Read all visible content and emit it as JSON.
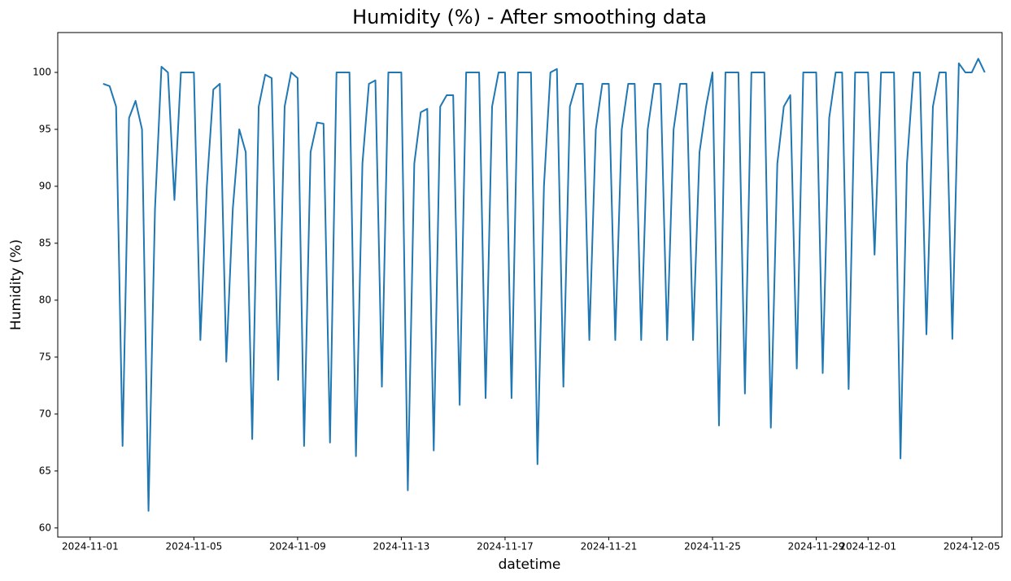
{
  "chart_data": {
    "type": "line",
    "title": "Humidity (%) - After smoothing data",
    "x_label": "datetime",
    "y_label": "Humidity (%)",
    "color": "#1f77b4",
    "x": [
      "2024-11-01 12:00",
      "2024-11-01 18:00",
      "2024-11-02 00:00",
      "2024-11-02 06:00",
      "2024-11-02 12:00",
      "2024-11-02 18:00",
      "2024-11-03 00:00",
      "2024-11-03 06:00",
      "2024-11-03 12:00",
      "2024-11-03 18:00",
      "2024-11-04 00:00",
      "2024-11-04 06:00",
      "2024-11-04 12:00",
      "2024-11-04 18:00",
      "2024-11-05 00:00",
      "2024-11-05 06:00",
      "2024-11-05 12:00",
      "2024-11-05 18:00",
      "2024-11-06 00:00",
      "2024-11-06 06:00",
      "2024-11-06 12:00",
      "2024-11-06 18:00",
      "2024-11-07 00:00",
      "2024-11-07 06:00",
      "2024-11-07 12:00",
      "2024-11-07 18:00",
      "2024-11-08 00:00",
      "2024-11-08 06:00",
      "2024-11-08 12:00",
      "2024-11-08 18:00",
      "2024-11-09 00:00",
      "2024-11-09 06:00",
      "2024-11-09 12:00",
      "2024-11-09 18:00",
      "2024-11-10 00:00",
      "2024-11-10 06:00",
      "2024-11-10 12:00",
      "2024-11-10 18:00",
      "2024-11-11 00:00",
      "2024-11-11 06:00",
      "2024-11-11 12:00",
      "2024-11-11 18:00",
      "2024-11-12 00:00",
      "2024-11-12 06:00",
      "2024-11-12 12:00",
      "2024-11-12 18:00",
      "2024-11-13 00:00",
      "2024-11-13 06:00",
      "2024-11-13 12:00",
      "2024-11-13 18:00",
      "2024-11-14 00:00",
      "2024-11-14 06:00",
      "2024-11-14 12:00",
      "2024-11-14 18:00",
      "2024-11-15 00:00",
      "2024-11-15 06:00",
      "2024-11-15 12:00",
      "2024-11-15 18:00",
      "2024-11-16 00:00",
      "2024-11-16 06:00",
      "2024-11-16 12:00",
      "2024-11-16 18:00",
      "2024-11-17 00:00",
      "2024-11-17 06:00",
      "2024-11-17 12:00",
      "2024-11-17 18:00",
      "2024-11-18 00:00",
      "2024-11-18 06:00",
      "2024-11-18 12:00",
      "2024-11-18 18:00",
      "2024-11-19 00:00",
      "2024-11-19 06:00",
      "2024-11-19 12:00",
      "2024-11-19 18:00",
      "2024-11-20 00:00",
      "2024-11-20 06:00",
      "2024-11-20 12:00",
      "2024-11-20 18:00",
      "2024-11-21 00:00",
      "2024-11-21 06:00",
      "2024-11-21 12:00",
      "2024-11-21 18:00",
      "2024-11-22 00:00",
      "2024-11-22 06:00",
      "2024-11-22 12:00",
      "2024-11-22 18:00",
      "2024-11-23 00:00",
      "2024-11-23 06:00",
      "2024-11-23 12:00",
      "2024-11-23 18:00",
      "2024-11-24 00:00",
      "2024-11-24 06:00",
      "2024-11-24 12:00",
      "2024-11-24 18:00",
      "2024-11-25 00:00",
      "2024-11-25 06:00",
      "2024-11-25 12:00",
      "2024-11-25 18:00",
      "2024-11-26 00:00",
      "2024-11-26 06:00",
      "2024-11-26 12:00",
      "2024-11-26 18:00",
      "2024-11-27 00:00",
      "2024-11-27 06:00",
      "2024-11-27 12:00",
      "2024-11-27 18:00",
      "2024-11-28 00:00",
      "2024-11-28 06:00",
      "2024-11-28 12:00",
      "2024-11-28 18:00",
      "2024-11-29 00:00",
      "2024-11-29 06:00",
      "2024-11-29 12:00",
      "2024-11-29 18:00",
      "2024-11-30 00:00",
      "2024-11-30 06:00",
      "2024-11-30 12:00",
      "2024-11-30 18:00",
      "2024-12-01 00:00",
      "2024-12-01 06:00",
      "2024-12-01 12:00",
      "2024-12-01 18:00",
      "2024-12-02 00:00",
      "2024-12-02 06:00",
      "2024-12-02 12:00",
      "2024-12-02 18:00",
      "2024-12-03 00:00",
      "2024-12-03 06:00",
      "2024-12-03 12:00",
      "2024-12-03 18:00",
      "2024-12-04 00:00",
      "2024-12-04 06:00",
      "2024-12-04 12:00",
      "2024-12-04 18:00",
      "2024-12-05 00:00",
      "2024-12-05 06:00",
      "2024-12-05 12:00"
    ],
    "values": [
      99,
      98.8,
      97,
      67.2,
      96,
      97.5,
      95,
      61.5,
      88,
      100.5,
      100,
      88.8,
      100,
      100,
      100,
      76.5,
      90,
      98.5,
      99,
      74.6,
      88,
      95,
      93,
      67.8,
      97,
      99.8,
      99.5,
      73,
      97,
      100,
      99.5,
      67.2,
      93,
      95.6,
      95.5,
      67.5,
      100,
      100,
      100,
      66.3,
      92,
      99,
      99.3,
      72.4,
      100,
      100,
      100,
      63.3,
      92,
      96.5,
      96.8,
      66.8,
      97,
      98,
      98,
      70.8,
      100,
      100,
      100,
      71.4,
      97,
      100,
      100,
      71.4,
      100,
      100,
      100,
      65.6,
      90,
      100,
      100.3,
      72.4,
      97,
      99,
      99,
      76.5,
      95,
      99,
      99,
      76.5,
      95,
      99,
      99,
      76.5,
      95,
      99,
      99,
      76.5,
      95,
      99,
      99,
      76.5,
      93,
      97,
      100,
      69,
      100,
      100,
      100,
      71.8,
      100,
      100,
      100,
      68.8,
      92,
      97,
      98,
      74,
      100,
      100,
      100,
      73.6,
      96,
      100,
      100,
      72.2,
      100,
      100,
      100,
      84,
      100,
      100,
      100,
      66.1,
      92,
      100,
      100,
      77,
      97,
      100,
      100,
      76.6,
      100.8,
      100,
      100,
      101.2,
      100
    ],
    "xlim": [
      "2024-10-30 18:00",
      "2024-12-06 04:00"
    ],
    "xticks": [
      "2024-11-01",
      "2024-11-05",
      "2024-11-09",
      "2024-11-13",
      "2024-11-17",
      "2024-11-21",
      "2024-11-25",
      "2024-11-29",
      "2024-12-01",
      "2024-12-05"
    ],
    "ylim": [
      59.2,
      103.5
    ],
    "yticks": [
      60,
      65,
      70,
      75,
      80,
      85,
      90,
      95,
      100
    ],
    "grid": false
  }
}
